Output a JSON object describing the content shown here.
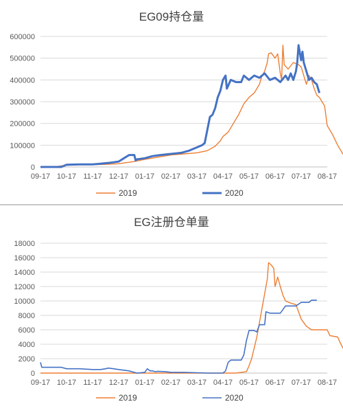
{
  "chart_data": [
    {
      "type": "line",
      "title": "EG09持仓量",
      "x_ticks": [
        "09-17",
        "10-17",
        "11-17",
        "12-17",
        "01-17",
        "02-17",
        "03-17",
        "04-17",
        "05-17",
        "06-17",
        "07-17",
        "08-17"
      ],
      "ylim": [
        0,
        600000
      ],
      "y_ticks": [
        "0",
        "100000",
        "200000",
        "300000",
        "400000",
        "500000",
        "600000"
      ],
      "grid": true,
      "legend": "bottom",
      "series": [
        {
          "name": "2019",
          "color": "#ED7D31",
          "width": 1.4,
          "points": [
            [
              0,
              0
            ],
            [
              0.5,
              0
            ],
            [
              0.8,
              5000
            ],
            [
              1.0,
              8000
            ],
            [
              1.5,
              10000
            ],
            [
              2.0,
              10000
            ],
            [
              2.5,
              12000
            ],
            [
              3.0,
              15000
            ],
            [
              3.3,
              20000
            ],
            [
              3.6,
              25000
            ],
            [
              4.0,
              35000
            ],
            [
              4.5,
              45000
            ],
            [
              5.0,
              55000
            ],
            [
              5.5,
              60000
            ],
            [
              6.0,
              65000
            ],
            [
              6.4,
              75000
            ],
            [
              6.7,
              95000
            ],
            [
              6.9,
              120000
            ],
            [
              7.0,
              140000
            ],
            [
              7.2,
              160000
            ],
            [
              7.4,
              200000
            ],
            [
              7.6,
              240000
            ],
            [
              7.8,
              290000
            ],
            [
              8.0,
              320000
            ],
            [
              8.2,
              340000
            ],
            [
              8.4,
              380000
            ],
            [
              8.5,
              420000
            ],
            [
              8.6,
              440000
            ],
            [
              8.7,
              480000
            ],
            [
              8.75,
              520000
            ],
            [
              8.85,
              525000
            ],
            [
              9.0,
              500000
            ],
            [
              9.1,
              520000
            ],
            [
              9.2,
              430000
            ],
            [
              9.25,
              400000
            ],
            [
              9.3,
              560000
            ],
            [
              9.35,
              470000
            ],
            [
              9.5,
              450000
            ],
            [
              9.7,
              480000
            ],
            [
              9.9,
              470000
            ],
            [
              10.0,
              460000
            ],
            [
              10.2,
              380000
            ],
            [
              10.3,
              420000
            ],
            [
              10.4,
              400000
            ],
            [
              10.5,
              360000
            ],
            [
              10.6,
              330000
            ],
            [
              10.7,
              320000
            ],
            [
              10.8,
              300000
            ],
            [
              10.9,
              280000
            ],
            [
              11.0,
              190000
            ],
            [
              11.2,
              150000
            ],
            [
              11.4,
              100000
            ],
            [
              11.6,
              60000
            ],
            [
              11.8,
              30000
            ],
            [
              12.0,
              10000
            ],
            [
              12.2,
              2000
            ],
            [
              12.5,
              0
            ]
          ]
        },
        {
          "name": "2020",
          "color": "#4472C4",
          "width": 3,
          "points": [
            [
              0,
              0
            ],
            [
              0.8,
              0
            ],
            [
              1.0,
              10000
            ],
            [
              1.5,
              12000
            ],
            [
              2.0,
              12000
            ],
            [
              2.3,
              15000
            ],
            [
              2.7,
              20000
            ],
            [
              3.0,
              25000
            ],
            [
              3.2,
              40000
            ],
            [
              3.4,
              55000
            ],
            [
              3.6,
              55000
            ],
            [
              3.65,
              30000
            ],
            [
              3.7,
              35000
            ],
            [
              4.0,
              40000
            ],
            [
              4.3,
              50000
            ],
            [
              4.6,
              55000
            ],
            [
              5.0,
              60000
            ],
            [
              5.4,
              65000
            ],
            [
              5.7,
              75000
            ],
            [
              6.0,
              90000
            ],
            [
              6.2,
              100000
            ],
            [
              6.3,
              110000
            ],
            [
              6.4,
              170000
            ],
            [
              6.5,
              230000
            ],
            [
              6.6,
              240000
            ],
            [
              6.7,
              270000
            ],
            [
              6.8,
              320000
            ],
            [
              6.9,
              350000
            ],
            [
              7.0,
              400000
            ],
            [
              7.1,
              420000
            ],
            [
              7.15,
              360000
            ],
            [
              7.3,
              400000
            ],
            [
              7.5,
              390000
            ],
            [
              7.7,
              390000
            ],
            [
              7.8,
              420000
            ],
            [
              8.0,
              400000
            ],
            [
              8.2,
              420000
            ],
            [
              8.4,
              410000
            ],
            [
              8.6,
              430000
            ],
            [
              8.8,
              400000
            ],
            [
              9.0,
              410000
            ],
            [
              9.2,
              390000
            ],
            [
              9.4,
              420000
            ],
            [
              9.5,
              400000
            ],
            [
              9.6,
              430000
            ],
            [
              9.7,
              400000
            ],
            [
              9.8,
              440000
            ],
            [
              9.85,
              480000
            ],
            [
              9.9,
              560000
            ],
            [
              10.0,
              490000
            ],
            [
              10.05,
              530000
            ],
            [
              10.1,
              480000
            ],
            [
              10.2,
              440000
            ],
            [
              10.3,
              400000
            ],
            [
              10.4,
              410000
            ],
            [
              10.5,
              390000
            ],
            [
              10.6,
              380000
            ],
            [
              10.7,
              340000
            ]
          ]
        }
      ]
    },
    {
      "type": "line",
      "title": "EG注册仓单量",
      "x_ticks": [
        "09-17",
        "10-17",
        "11-17",
        "12-17",
        "01-17",
        "02-17",
        "03-17",
        "04-17",
        "05-17",
        "06-17",
        "07-17",
        "08-17"
      ],
      "ylim": [
        0,
        18000
      ],
      "y_ticks": [
        "0",
        "2000",
        "4000",
        "6000",
        "8000",
        "10000",
        "12000",
        "14000",
        "16000",
        "18000"
      ],
      "grid": true,
      "legend": "bottom",
      "series": [
        {
          "name": "2019",
          "color": "#ED7D31",
          "width": 1.4,
          "points": [
            [
              0,
              0
            ],
            [
              7.5,
              0
            ],
            [
              7.9,
              200
            ],
            [
              8.0,
              1000
            ],
            [
              8.1,
              2000
            ],
            [
              8.2,
              3500
            ],
            [
              8.3,
              5000
            ],
            [
              8.4,
              7000
            ],
            [
              8.5,
              9000
            ],
            [
              8.6,
              11000
            ],
            [
              8.7,
              13000
            ],
            [
              8.75,
              15300
            ],
            [
              8.85,
              15000
            ],
            [
              8.95,
              14500
            ],
            [
              9.0,
              12000
            ],
            [
              9.1,
              13300
            ],
            [
              9.2,
              12000
            ],
            [
              9.3,
              10800
            ],
            [
              9.4,
              10000
            ],
            [
              9.6,
              9700
            ],
            [
              9.8,
              9500
            ],
            [
              10.0,
              7500
            ],
            [
              10.2,
              6500
            ],
            [
              10.4,
              6000
            ],
            [
              10.7,
              6000
            ],
            [
              11.0,
              6000
            ],
            [
              11.1,
              5200
            ],
            [
              11.4,
              5000
            ],
            [
              11.5,
              4200
            ],
            [
              11.6,
              3500
            ],
            [
              11.8,
              2500
            ],
            [
              12.0,
              1500
            ],
            [
              12.1,
              1300
            ]
          ]
        },
        {
          "name": "2020",
          "color": "#4472C4",
          "width": 1.6,
          "points": [
            [
              0,
              1500
            ],
            [
              0.05,
              800
            ],
            [
              0.5,
              800
            ],
            [
              0.8,
              800
            ],
            [
              1.0,
              600
            ],
            [
              1.5,
              600
            ],
            [
              2.0,
              500
            ],
            [
              2.3,
              500
            ],
            [
              2.5,
              600
            ],
            [
              2.6,
              700
            ],
            [
              2.8,
              600
            ],
            [
              3.0,
              500
            ],
            [
              3.2,
              400
            ],
            [
              3.4,
              300
            ],
            [
              3.5,
              200
            ],
            [
              3.7,
              0
            ],
            [
              4.0,
              100
            ],
            [
              4.1,
              600
            ],
            [
              4.2,
              300
            ],
            [
              4.3,
              300
            ],
            [
              4.4,
              200
            ],
            [
              4.5,
              250
            ],
            [
              4.8,
              200
            ],
            [
              5.0,
              100
            ],
            [
              5.5,
              100
            ],
            [
              6.0,
              50
            ],
            [
              6.5,
              0
            ],
            [
              7.0,
              0
            ],
            [
              7.1,
              300
            ],
            [
              7.2,
              1500
            ],
            [
              7.3,
              1800
            ],
            [
              7.5,
              1800
            ],
            [
              7.7,
              1800
            ],
            [
              7.8,
              2500
            ],
            [
              7.9,
              4500
            ],
            [
              8.0,
              5900
            ],
            [
              8.2,
              5900
            ],
            [
              8.3,
              5700
            ],
            [
              8.4,
              6700
            ],
            [
              8.6,
              6700
            ],
            [
              8.65,
              8500
            ],
            [
              8.8,
              8300
            ],
            [
              9.0,
              8300
            ],
            [
              9.2,
              8300
            ],
            [
              9.4,
              9300
            ],
            [
              9.6,
              9300
            ],
            [
              9.8,
              9300
            ],
            [
              10.0,
              9800
            ],
            [
              10.3,
              9800
            ],
            [
              10.4,
              10100
            ],
            [
              10.6,
              10100
            ]
          ]
        }
      ]
    }
  ]
}
